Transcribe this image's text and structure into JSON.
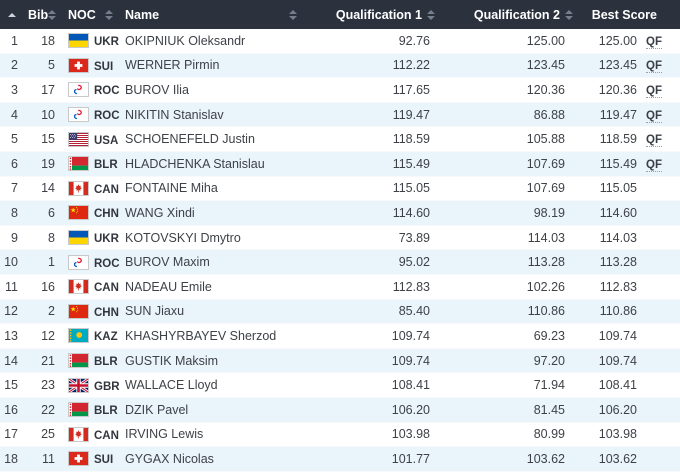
{
  "table": {
    "header": {
      "bib": "Bib",
      "noc": "NOC",
      "name": "Name",
      "q1": "Qualification 1",
      "q2": "Qualification 2",
      "best": "Best Score",
      "rank_sort_state": "ascending"
    },
    "qualified_label": "QF",
    "rows": [
      {
        "rank": "1",
        "bib": "18",
        "noc": "UKR",
        "name": "OKIPNIUK Oleksandr",
        "q1": "92.76",
        "q2": "125.00",
        "best": "125.00",
        "qualified": "QF"
      },
      {
        "rank": "2",
        "bib": "5",
        "noc": "SUI",
        "name": "WERNER Pirmin",
        "q1": "112.22",
        "q2": "123.45",
        "best": "123.45",
        "qualified": "QF"
      },
      {
        "rank": "3",
        "bib": "17",
        "noc": "ROC",
        "name": "BUROV Ilia",
        "q1": "117.65",
        "q2": "120.36",
        "best": "120.36",
        "qualified": "QF"
      },
      {
        "rank": "4",
        "bib": "10",
        "noc": "ROC",
        "name": "NIKITIN Stanislav",
        "q1": "119.47",
        "q2": "86.88",
        "best": "119.47",
        "qualified": "QF"
      },
      {
        "rank": "5",
        "bib": "15",
        "noc": "USA",
        "name": "SCHOENEFELD Justin",
        "q1": "118.59",
        "q2": "105.88",
        "best": "118.59",
        "qualified": "QF"
      },
      {
        "rank": "6",
        "bib": "19",
        "noc": "BLR",
        "name": "HLADCHENKA Stanislau",
        "q1": "115.49",
        "q2": "107.69",
        "best": "115.49",
        "qualified": "QF"
      },
      {
        "rank": "7",
        "bib": "14",
        "noc": "CAN",
        "name": "FONTAINE Miha",
        "q1": "115.05",
        "q2": "107.69",
        "best": "115.05",
        "qualified": ""
      },
      {
        "rank": "8",
        "bib": "6",
        "noc": "CHN",
        "name": "WANG Xindi",
        "q1": "114.60",
        "q2": "98.19",
        "best": "114.60",
        "qualified": ""
      },
      {
        "rank": "9",
        "bib": "8",
        "noc": "UKR",
        "name": "KOTOVSKYI Dmytro",
        "q1": "73.89",
        "q2": "114.03",
        "best": "114.03",
        "qualified": ""
      },
      {
        "rank": "10",
        "bib": "1",
        "noc": "ROC",
        "name": "BUROV Maxim",
        "q1": "95.02",
        "q2": "113.28",
        "best": "113.28",
        "qualified": ""
      },
      {
        "rank": "11",
        "bib": "16",
        "noc": "CAN",
        "name": "NADEAU Emile",
        "q1": "112.83",
        "q2": "102.26",
        "best": "112.83",
        "qualified": ""
      },
      {
        "rank": "12",
        "bib": "2",
        "noc": "CHN",
        "name": "SUN Jiaxu",
        "q1": "85.40",
        "q2": "110.86",
        "best": "110.86",
        "qualified": ""
      },
      {
        "rank": "13",
        "bib": "12",
        "noc": "KAZ",
        "name": "KHASHYRBAYEV Sherzod",
        "q1": "109.74",
        "q2": "69.23",
        "best": "109.74",
        "qualified": ""
      },
      {
        "rank": "14",
        "bib": "21",
        "noc": "BLR",
        "name": "GUSTIK Maksim",
        "q1": "109.74",
        "q2": "97.20",
        "best": "109.74",
        "qualified": ""
      },
      {
        "rank": "15",
        "bib": "23",
        "noc": "GBR",
        "name": "WALLACE Lloyd",
        "q1": "108.41",
        "q2": "71.94",
        "best": "108.41",
        "qualified": ""
      },
      {
        "rank": "16",
        "bib": "22",
        "noc": "BLR",
        "name": "DZIK Pavel",
        "q1": "106.20",
        "q2": "81.45",
        "best": "106.20",
        "qualified": ""
      },
      {
        "rank": "17",
        "bib": "25",
        "noc": "CAN",
        "name": "IRVING Lewis",
        "q1": "103.98",
        "q2": "80.99",
        "best": "103.98",
        "qualified": ""
      },
      {
        "rank": "18",
        "bib": "11",
        "noc": "SUI",
        "name": "GYGAX Nicolas",
        "q1": "101.77",
        "q2": "103.62",
        "best": "103.62",
        "qualified": ""
      }
    ]
  },
  "flags": {
    "UKR": {
      "icon": "flag-ukr-icon",
      "colors": [
        "#0057b8",
        "#ffd500"
      ]
    },
    "SUI": {
      "icon": "flag-sui-icon",
      "colors": [
        "#da291c",
        "#ffffff"
      ]
    },
    "ROC": {
      "icon": "flag-roc-icon",
      "colors": [
        "#ffffff",
        "#e8112d",
        "#0057b8"
      ]
    },
    "USA": {
      "icon": "flag-usa-icon",
      "colors": [
        "#b22234",
        "#ffffff",
        "#3c3b6e"
      ]
    },
    "BLR": {
      "icon": "flag-blr-icon",
      "colors": [
        "#d22730",
        "#00964a",
        "#ffffff"
      ]
    },
    "CAN": {
      "icon": "flag-can-icon",
      "colors": [
        "#d52b1e",
        "#ffffff"
      ]
    },
    "CHN": {
      "icon": "flag-chn-icon",
      "colors": [
        "#de2910",
        "#ffde00"
      ]
    },
    "KAZ": {
      "icon": "flag-kaz-icon",
      "colors": [
        "#00abc2",
        "#fec50c"
      ]
    },
    "GBR": {
      "icon": "flag-gbr-icon",
      "colors": [
        "#012169",
        "#ffffff",
        "#c8102e"
      ]
    }
  },
  "colors": {
    "header_bg": "#2b323e",
    "header_text": "#ffffff",
    "row_stripe": "#e9f4fb",
    "row_text": "#3e4247",
    "sort_icon": "#767e8c",
    "sort_icon_active": "#cfd4dc"
  }
}
